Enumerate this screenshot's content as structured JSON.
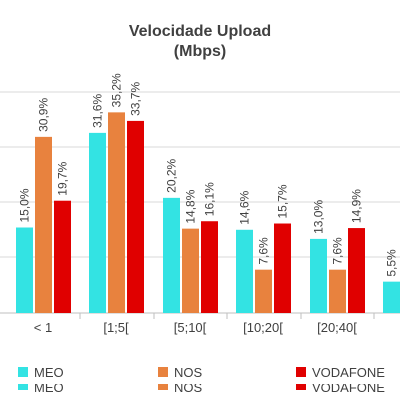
{
  "chart_data": {
    "type": "bar",
    "title": [
      "Velocidade Upload",
      "(Mbps)"
    ],
    "xlabel": "",
    "ylabel": "",
    "grid": true,
    "legend_position": "bottom",
    "categories": [
      "< 1",
      "[1;5[",
      "[5;10[",
      "[10;20[",
      "[20;40[",
      ""
    ],
    "series": [
      {
        "name": "MEO",
        "color": "#33E3E3",
        "values": [
          15.0,
          31.6,
          20.2,
          14.6,
          13.0,
          5.5
        ],
        "labels": [
          "15,0%",
          "31,6%",
          "20,2%",
          "14,6%",
          "13,0%",
          "5,5%"
        ]
      },
      {
        "name": "NOS",
        "color": "#E8823E",
        "values": [
          30.9,
          35.2,
          14.8,
          7.6,
          7.6,
          null
        ],
        "labels": [
          "30,9%",
          "35,2%",
          "14,8%",
          "7,6%",
          "7,6%",
          ""
        ]
      },
      {
        "name": "VODAFONE",
        "color": "#E00000",
        "values": [
          19.7,
          33.7,
          16.1,
          15.7,
          14.9,
          null
        ],
        "labels": [
          "19,7%",
          "33,7%",
          "16,1%",
          "15,7%",
          "14,9%",
          ""
        ]
      }
    ]
  }
}
